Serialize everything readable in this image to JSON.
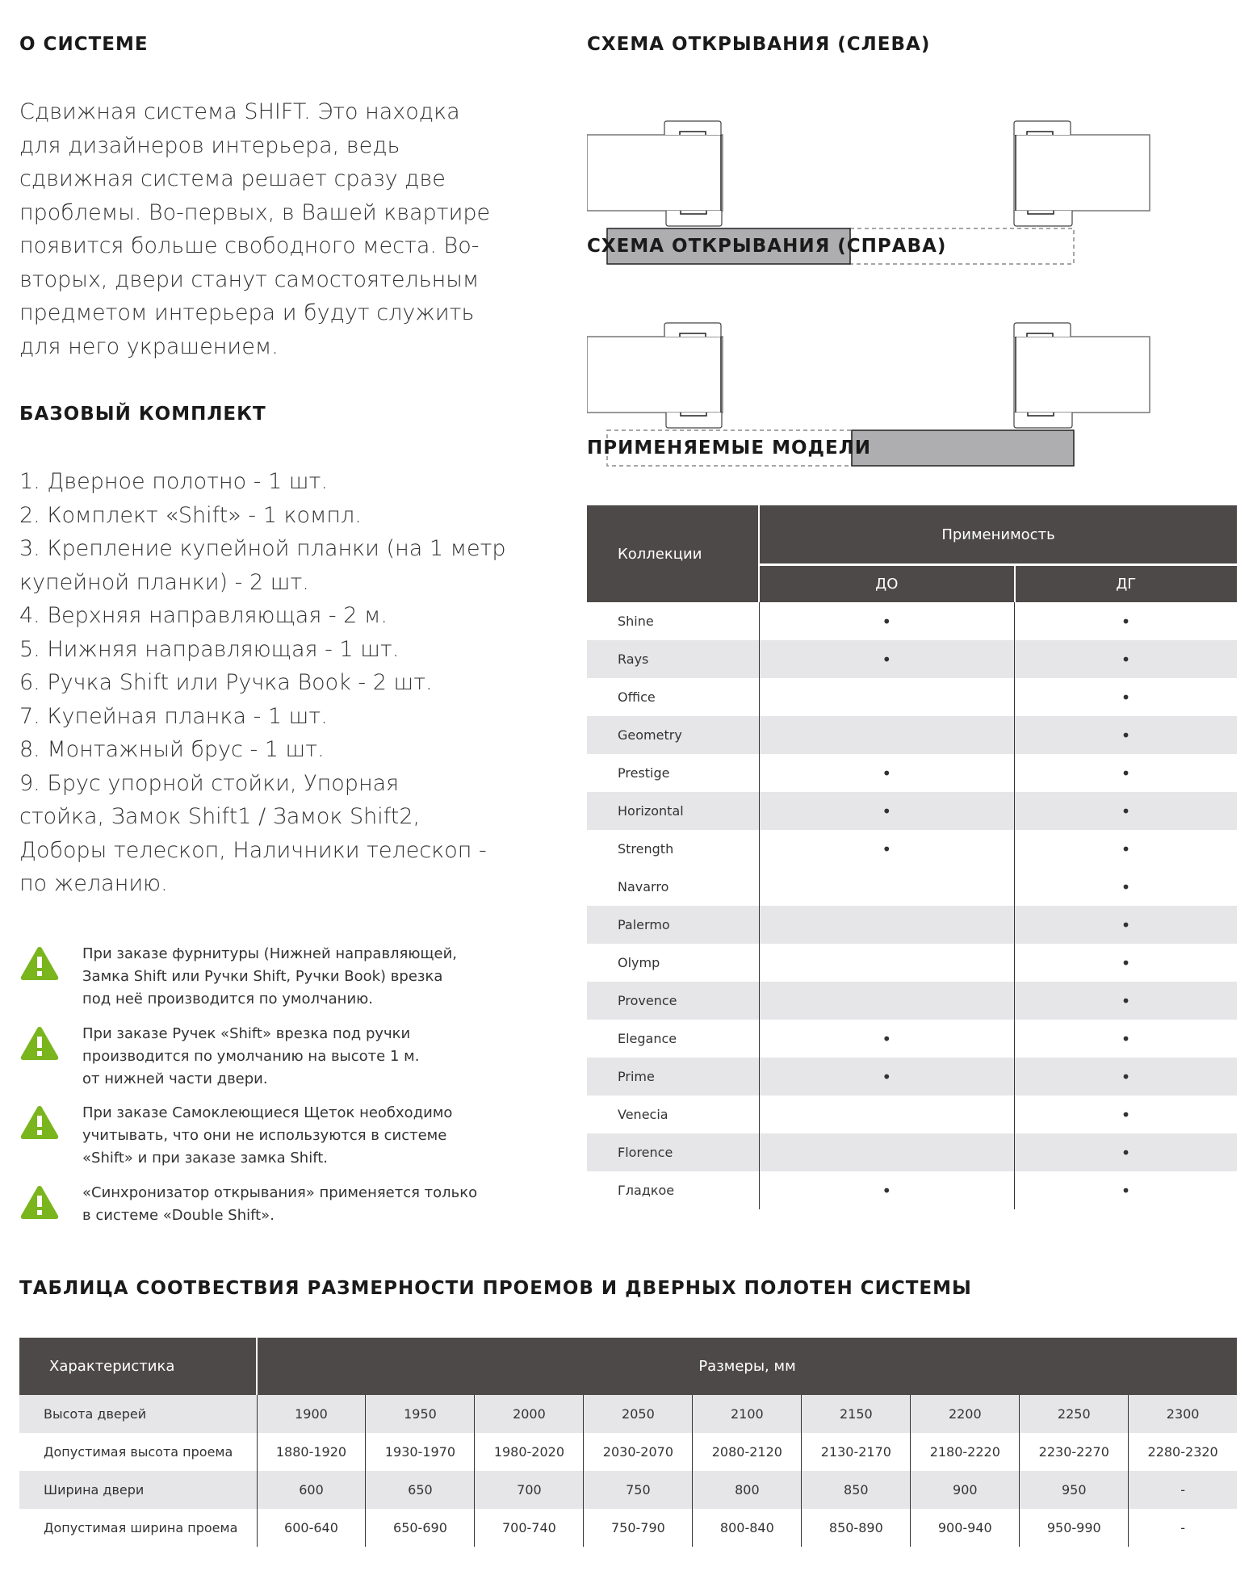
{
  "about": {
    "title": "О СИСТЕМЕ",
    "lines": [
      "Сдвижная система SHIFT.  Это  находка",
      "для дизайнеров интерьера, ведь",
      "сдвижная система решает сразу две",
      "проблемы. Во-первых, в Вашей квартире",
      "появится больше свободного места. Во-",
      "вторых, двери станут самостоятельным",
      "предметом интерьера и будут служить",
      "для него украшением."
    ]
  },
  "kit": {
    "title": "БАЗОВЫЙ КОМПЛЕКТ",
    "lines": [
      "1. Дверное полотно - 1 шт.",
      "2. Комплект «Shift» - 1 компл.",
      "3. Крепление купейной планки (на 1 метр",
      "купейной планки) - 2 шт.",
      "4. Верхняя направляющая -  2 м.",
      "5. Нижняя направляющая -  1 шт.",
      "6. Ручка Shift или Ручка Book -  2 шт.",
      "7. Купейная планка  - 1 шт.",
      "8. Монтажный брус - 1 шт.",
      "9.  Брус упорной стойки, Упорная",
      "стойка, Замок Shift1 / Замок Shift2,",
      "Доборы телескоп, Наличники телескоп -",
      "по желанию."
    ]
  },
  "notes": {
    "icon": "warning-triangle-icon",
    "icon_color": "#7ab51d",
    "items": [
      [
        "При заказе фурнитуры (Нижней направляющей,",
        "Замка Shift или Ручки Shift, Ручки Book) врезка",
        "под неё производится  по умолчанию."
      ],
      [
        "При заказе Ручек «Shift» врезка под ручки",
        "производится по умолчанию на высоте 1 м.",
        "от нижней части двери."
      ],
      [
        "При заказе Самоклеющиеся Щеток необходимо",
        "учитывать, что они не используются в системе",
        "«Shift» и при заказе замка Shift."
      ],
      [
        "«Синхронизатор открывания» применяется только",
        "в системе «Double Shift»."
      ]
    ]
  },
  "scheme_left": {
    "title": "СХЕМА ОТКРЫВАНИЯ (СЛЕВА)"
  },
  "scheme_right": {
    "title": "СХЕМА ОТКРЫВАНИЯ (СПРАВА)"
  },
  "models": {
    "title": "ПРИМЕНЯЕМЫЕ МОДЕЛИ",
    "col_collections": "Коллекции",
    "col_applicability": "Применимость",
    "col_do": "ДО",
    "col_dg": "ДГ",
    "mark": "•",
    "rows": [
      {
        "name": "Shine",
        "do": true,
        "dg": true
      },
      {
        "name": "Rays",
        "do": true,
        "dg": true
      },
      {
        "name": "Office",
        "do": false,
        "dg": true
      },
      {
        "name": "Geometry",
        "do": false,
        "dg": true
      },
      {
        "name": "Prestige",
        "do": true,
        "dg": true
      },
      {
        "name": "Horizontal",
        "do": true,
        "dg": true
      },
      {
        "name": "Strength",
        "do": true,
        "dg": true
      },
      {
        "name": "Navarro",
        "do": false,
        "dg": true
      },
      {
        "name": "Palermo",
        "do": false,
        "dg": true
      },
      {
        "name": "Olymp",
        "do": false,
        "dg": true
      },
      {
        "name": "Provence",
        "do": false,
        "dg": true
      },
      {
        "name": "Elegance",
        "do": true,
        "dg": true
      },
      {
        "name": "Prime",
        "do": true,
        "dg": true
      },
      {
        "name": "Venecia",
        "do": false,
        "dg": true
      },
      {
        "name": "Florence",
        "do": false,
        "dg": true
      },
      {
        "name": "Гладкое",
        "do": true,
        "dg": true
      }
    ]
  },
  "sizes": {
    "title": "ТАБЛИЦА СООТВЕСТВИЯ РАЗМЕРНОСТИ ПРОЕМОВ И ДВЕРНЫХ ПОЛОТЕН СИСТЕМЫ",
    "col_characteristic": "Характеристика",
    "col_sizes": "Размеры, мм",
    "rows": [
      {
        "name": "Высота дверей",
        "values": [
          "1900",
          "1950",
          "2000",
          "2050",
          "2100",
          "2150",
          "2200",
          "2250",
          "2300"
        ]
      },
      {
        "name": "Допустимая высота проема",
        "values": [
          "1880-1920",
          "1930-1970",
          "1980-2020",
          "2030-2070",
          "2080-2120",
          "2130-2170",
          "2180-2220",
          "2230-2270",
          "2280-2320"
        ]
      },
      {
        "name": "Ширина двери",
        "values": [
          "600",
          "650",
          "700",
          "750",
          "800",
          "850",
          "900",
          "950",
          "-"
        ]
      },
      {
        "name": "Допустимая ширина проема",
        "values": [
          "600-640",
          "650-690",
          "700-740",
          "750-790",
          "800-840",
          "850-890",
          "900-940",
          "950-990",
          "-"
        ]
      }
    ]
  }
}
